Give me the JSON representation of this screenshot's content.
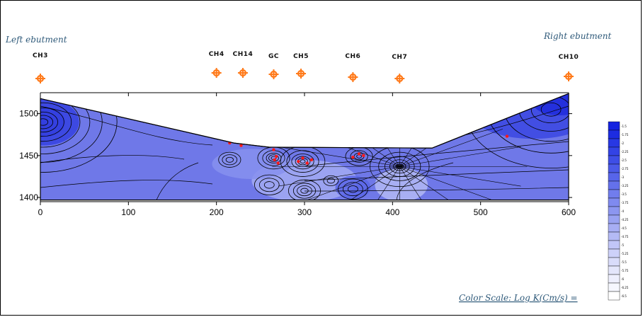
{
  "labels": {
    "left_abutment": "Left ebutment",
    "right_abutment": "Right ebutment",
    "color_scale": "Color Scale: Log K(Cm/s) ="
  },
  "chart_data": {
    "type": "heatmap",
    "title": "",
    "xlabel": "",
    "ylabel": "",
    "xlim": [
      0,
      600
    ],
    "ylim": [
      1395,
      1525
    ],
    "x_ticks": [
      0,
      100,
      200,
      300,
      400,
      500,
      600
    ],
    "x_tick_labels": [
      "0",
      "100",
      "200",
      "300",
      "400",
      "500",
      "600"
    ],
    "y_ticks": [
      1400,
      1450,
      1500
    ],
    "y_tick_labels": [
      "1400",
      "1450",
      "1500"
    ],
    "ground_surface": [
      {
        "x": 0,
        "y": 1518
      },
      {
        "x": 220,
        "y": 1465
      },
      {
        "x": 260,
        "y": 1460
      },
      {
        "x": 445,
        "y": 1459
      },
      {
        "x": 600,
        "y": 1524
      }
    ],
    "section_bottom": 1397,
    "boreholes": [
      {
        "name": "CH3",
        "x": 0
      },
      {
        "name": "CH4",
        "x": 200
      },
      {
        "name": "CH14",
        "x": 230
      },
      {
        "name": "GC",
        "x": 265
      },
      {
        "name": "CH5",
        "x": 296
      },
      {
        "name": "CH6",
        "x": 355
      },
      {
        "name": "CH7",
        "x": 408
      },
      {
        "name": "CH10",
        "x": 600
      }
    ],
    "test_points": [
      {
        "x": 215,
        "y": 1465
      },
      {
        "x": 228,
        "y": 1462
      },
      {
        "x": 265,
        "y": 1457
      },
      {
        "x": 268,
        "y": 1449
      },
      {
        "x": 270,
        "y": 1441
      },
      {
        "x": 266,
        "y": 1445
      },
      {
        "x": 293,
        "y": 1443
      },
      {
        "x": 298,
        "y": 1447
      },
      {
        "x": 303,
        "y": 1441
      },
      {
        "x": 308,
        "y": 1445
      },
      {
        "x": 355,
        "y": 1448
      },
      {
        "x": 362,
        "y": 1452
      },
      {
        "x": 367,
        "y": 1450
      },
      {
        "x": 530,
        "y": 1473
      }
    ],
    "legend": {
      "title": "Color Scale: Log K(Cm/s) =",
      "placement": "right",
      "levels": [
        "-1.5",
        "-1.75",
        "-2",
        "-2.25",
        "-2.5",
        "-2.75",
        "-3",
        "-3.25",
        "-3.5",
        "-3.75",
        "-4",
        "-4.25",
        "-4.5",
        "-4.75",
        "-5",
        "-5.25",
        "-5.5",
        "-5.75",
        "-6",
        "-6.25",
        "-6.5"
      ],
      "colors": [
        "#1422e0",
        "#1d2ce1",
        "#2838e3",
        "#3343e5",
        "#3e4ee6",
        "#4b5ae8",
        "#5765ea",
        "#6471eb",
        "#717ded",
        "#7f8aef",
        "#8c96f0",
        "#99a2f2",
        "#a7aef4",
        "#b4baf5",
        "#c1c6f7",
        "#cdd1f9",
        "#d9dcfa",
        "#e4e6fb",
        "#eeeffd",
        "#f6f7fe",
        "#ffffff"
      ]
    }
  }
}
